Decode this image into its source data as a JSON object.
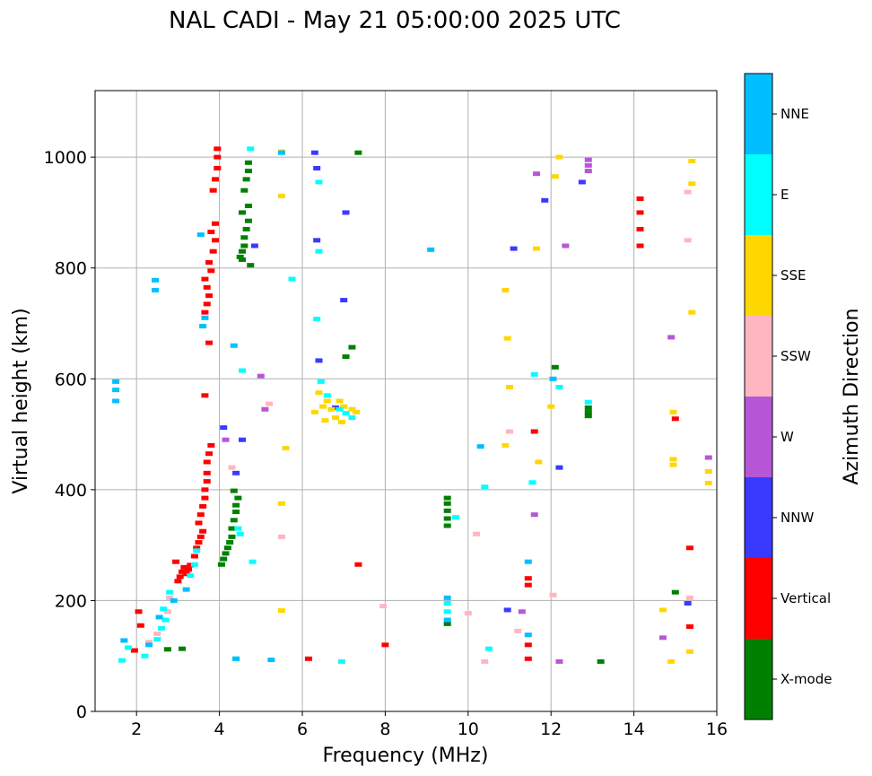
{
  "title": "NAL CADI - May 21 05:00:00 2025 UTC",
  "chart_data": {
    "type": "scatter",
    "title": "NAL CADI - May 21 05:00:00 2025 UTC",
    "xlabel": "Frequency (MHz)",
    "ylabel": "Virtual height (km)",
    "xlim": [
      1,
      16
    ],
    "ylim": [
      0,
      1120
    ],
    "xticks": [
      2,
      4,
      6,
      8,
      10,
      12,
      14,
      16
    ],
    "yticks": [
      0,
      200,
      400,
      600,
      800,
      1000
    ],
    "grid": true,
    "colorbar": {
      "label": "Azimuth Direction",
      "categories": [
        {
          "name": "X-mode",
          "color": "#008000"
        },
        {
          "name": "Vertical",
          "color": "#ff0000"
        },
        {
          "name": "NNW",
          "color": "#3a3aff"
        },
        {
          "name": "W",
          "color": "#b856d8"
        },
        {
          "name": "SSW",
          "color": "#ffb6c1"
        },
        {
          "name": "SSE",
          "color": "#ffd700"
        },
        {
          "name": "E",
          "color": "#00ffff"
        },
        {
          "name": "NNE",
          "color": "#00bfff"
        }
      ]
    },
    "series": [
      {
        "name": "X-mode",
        "points": [
          [
            4.05,
            265
          ],
          [
            4.1,
            275
          ],
          [
            4.15,
            285
          ],
          [
            4.2,
            295
          ],
          [
            4.25,
            305
          ],
          [
            4.3,
            315
          ],
          [
            4.3,
            330
          ],
          [
            4.35,
            345
          ],
          [
            4.4,
            360
          ],
          [
            4.4,
            372
          ],
          [
            4.45,
            385
          ],
          [
            4.35,
            398
          ],
          [
            4.5,
            820
          ],
          [
            4.55,
            830
          ],
          [
            4.6,
            840
          ],
          [
            4.6,
            855
          ],
          [
            4.65,
            870
          ],
          [
            4.7,
            885
          ],
          [
            4.55,
            900
          ],
          [
            4.7,
            912
          ],
          [
            4.6,
            940
          ],
          [
            4.65,
            960
          ],
          [
            4.7,
            975
          ],
          [
            4.7,
            990
          ],
          [
            4.75,
            805
          ],
          [
            4.55,
            815
          ],
          [
            9.5,
            335
          ],
          [
            9.5,
            348
          ],
          [
            9.5,
            362
          ],
          [
            9.5,
            375
          ],
          [
            9.5,
            385
          ],
          [
            9.5,
            158
          ],
          [
            3.1,
            113
          ],
          [
            2.75,
            112
          ],
          [
            12.9,
            533
          ],
          [
            12.9,
            540
          ],
          [
            12.9,
            548
          ],
          [
            13.2,
            90
          ],
          [
            15.0,
            215
          ],
          [
            7.35,
            1008
          ],
          [
            7.2,
            657
          ],
          [
            7.05,
            640
          ],
          [
            12.1,
            621
          ]
        ]
      },
      {
        "name": "Vertical",
        "points": [
          [
            3.0,
            235
          ],
          [
            3.05,
            243
          ],
          [
            3.1,
            252
          ],
          [
            3.15,
            260
          ],
          [
            3.2,
            248
          ],
          [
            3.25,
            256
          ],
          [
            3.3,
            264
          ],
          [
            2.95,
            270
          ],
          [
            3.4,
            280
          ],
          [
            3.45,
            295
          ],
          [
            3.5,
            305
          ],
          [
            3.55,
            315
          ],
          [
            3.6,
            325
          ],
          [
            3.5,
            340
          ],
          [
            3.55,
            355
          ],
          [
            3.6,
            370
          ],
          [
            3.65,
            385
          ],
          [
            3.65,
            400
          ],
          [
            3.7,
            415
          ],
          [
            3.7,
            430
          ],
          [
            3.7,
            450
          ],
          [
            3.75,
            465
          ],
          [
            3.8,
            480
          ],
          [
            3.65,
            720
          ],
          [
            3.7,
            735
          ],
          [
            3.75,
            750
          ],
          [
            3.7,
            765
          ],
          [
            3.65,
            780
          ],
          [
            3.8,
            795
          ],
          [
            3.75,
            810
          ],
          [
            3.85,
            830
          ],
          [
            3.9,
            850
          ],
          [
            3.8,
            865
          ],
          [
            3.9,
            880
          ],
          [
            3.85,
            940
          ],
          [
            3.9,
            960
          ],
          [
            3.95,
            980
          ],
          [
            3.95,
            1000
          ],
          [
            3.95,
            1015
          ],
          [
            3.65,
            570
          ],
          [
            3.75,
            665
          ],
          [
            2.1,
            155
          ],
          [
            2.05,
            180
          ],
          [
            1.95,
            110
          ],
          [
            6.15,
            95
          ],
          [
            7.35,
            265
          ],
          [
            8.0,
            120
          ],
          [
            11.45,
            95
          ],
          [
            11.45,
            120
          ],
          [
            11.45,
            228
          ],
          [
            11.45,
            240
          ],
          [
            11.6,
            505
          ],
          [
            14.15,
            840
          ],
          [
            14.15,
            870
          ],
          [
            14.15,
            900
          ],
          [
            14.15,
            925
          ],
          [
            15.0,
            528
          ],
          [
            15.35,
            295
          ],
          [
            15.35,
            153
          ]
        ]
      },
      {
        "name": "NNW",
        "points": [
          [
            4.1,
            512
          ],
          [
            4.4,
            430
          ],
          [
            4.85,
            840
          ],
          [
            6.3,
            1008
          ],
          [
            6.35,
            980
          ],
          [
            6.35,
            850
          ],
          [
            6.4,
            633
          ],
          [
            7.05,
            900
          ],
          [
            7.0,
            742
          ],
          [
            11.1,
            835
          ],
          [
            11.85,
            922
          ],
          [
            12.2,
            440
          ],
          [
            12.75,
            955
          ],
          [
            15.3,
            195
          ],
          [
            10.95,
            183
          ],
          [
            4.55,
            490
          ],
          [
            6.8,
            548
          ]
        ]
      },
      {
        "name": "W",
        "points": [
          [
            12.9,
            975
          ],
          [
            12.9,
            985
          ],
          [
            12.9,
            995
          ],
          [
            12.35,
            840
          ],
          [
            14.9,
            675
          ],
          [
            15.8,
            458
          ],
          [
            11.6,
            355
          ],
          [
            5.1,
            545
          ],
          [
            5.0,
            605
          ],
          [
            11.65,
            970
          ],
          [
            14.7,
            133
          ],
          [
            12.2,
            90
          ],
          [
            4.15,
            490
          ],
          [
            11.3,
            180
          ]
        ]
      },
      {
        "name": "SSW",
        "points": [
          [
            2.8,
            205
          ],
          [
            2.75,
            180
          ],
          [
            2.5,
            140
          ],
          [
            2.3,
            125
          ],
          [
            4.3,
            440
          ],
          [
            5.2,
            555
          ],
          [
            5.5,
            315
          ],
          [
            10.2,
            320
          ],
          [
            10.0,
            177
          ],
          [
            11.0,
            505
          ],
          [
            12.05,
            210
          ],
          [
            15.3,
            937
          ],
          [
            15.3,
            850
          ],
          [
            15.35,
            205
          ],
          [
            11.2,
            145
          ],
          [
            10.4,
            90
          ],
          [
            7.95,
            190
          ]
        ]
      },
      {
        "name": "SSE",
        "points": [
          [
            6.3,
            540
          ],
          [
            6.5,
            550
          ],
          [
            6.6,
            560
          ],
          [
            6.7,
            545
          ],
          [
            6.8,
            530
          ],
          [
            6.9,
            560
          ],
          [
            7.0,
            550
          ],
          [
            7.2,
            545
          ],
          [
            6.4,
            575
          ],
          [
            6.55,
            525
          ],
          [
            6.95,
            522
          ],
          [
            7.3,
            540
          ],
          [
            5.5,
            375
          ],
          [
            5.6,
            475
          ],
          [
            5.5,
            930
          ],
          [
            5.5,
            1010
          ],
          [
            10.9,
            760
          ],
          [
            10.95,
            673
          ],
          [
            10.9,
            480
          ],
          [
            11.0,
            585
          ],
          [
            12.0,
            550
          ],
          [
            11.7,
            450
          ],
          [
            12.2,
            1000
          ],
          [
            12.1,
            965
          ],
          [
            14.95,
            455
          ],
          [
            14.95,
            445
          ],
          [
            14.95,
            540
          ],
          [
            15.4,
            720
          ],
          [
            15.4,
            993
          ],
          [
            15.4,
            952
          ],
          [
            15.8,
            433
          ],
          [
            15.8,
            412
          ],
          [
            15.35,
            108
          ],
          [
            14.9,
            90
          ],
          [
            14.7,
            183
          ],
          [
            11.65,
            835
          ],
          [
            5.5,
            182
          ]
        ]
      },
      {
        "name": "E",
        "points": [
          [
            2.5,
            130
          ],
          [
            2.6,
            150
          ],
          [
            2.7,
            165
          ],
          [
            2.65,
            185
          ],
          [
            2.8,
            215
          ],
          [
            1.8,
            115
          ],
          [
            1.65,
            92
          ],
          [
            2.2,
            100
          ],
          [
            3.3,
            245
          ],
          [
            3.4,
            265
          ],
          [
            3.45,
            290
          ],
          [
            4.8,
            270
          ],
          [
            4.5,
            320
          ],
          [
            4.45,
            330
          ],
          [
            6.4,
            955
          ],
          [
            6.4,
            830
          ],
          [
            6.35,
            708
          ],
          [
            6.45,
            595
          ],
          [
            6.6,
            570
          ],
          [
            6.9,
            545
          ],
          [
            7.05,
            538
          ],
          [
            7.2,
            530
          ],
          [
            9.5,
            180
          ],
          [
            9.5,
            195
          ],
          [
            10.5,
            113
          ],
          [
            10.4,
            405
          ],
          [
            11.6,
            608
          ],
          [
            11.55,
            413
          ],
          [
            12.9,
            558
          ],
          [
            12.2,
            585
          ],
          [
            9.7,
            350
          ],
          [
            4.4,
            95
          ],
          [
            6.95,
            90
          ],
          [
            4.55,
            615
          ],
          [
            4.75,
            1015
          ],
          [
            5.75,
            780
          ]
        ]
      },
      {
        "name": "NNE",
        "points": [
          [
            1.5,
            560
          ],
          [
            1.5,
            580
          ],
          [
            1.5,
            595
          ],
          [
            2.45,
            760
          ],
          [
            2.45,
            778
          ],
          [
            3.6,
            695
          ],
          [
            3.65,
            710
          ],
          [
            3.55,
            860
          ],
          [
            4.35,
            660
          ],
          [
            4.4,
            95
          ],
          [
            9.1,
            833
          ],
          [
            9.5,
            165
          ],
          [
            9.5,
            205
          ],
          [
            10.3,
            478
          ],
          [
            11.45,
            138
          ],
          [
            11.45,
            270
          ],
          [
            12.05,
            600
          ],
          [
            2.55,
            170
          ],
          [
            2.3,
            120
          ],
          [
            2.9,
            200
          ],
          [
            3.2,
            220
          ],
          [
            1.7,
            128
          ],
          [
            5.25,
            93
          ],
          [
            5.5,
            1008
          ]
        ]
      }
    ]
  }
}
